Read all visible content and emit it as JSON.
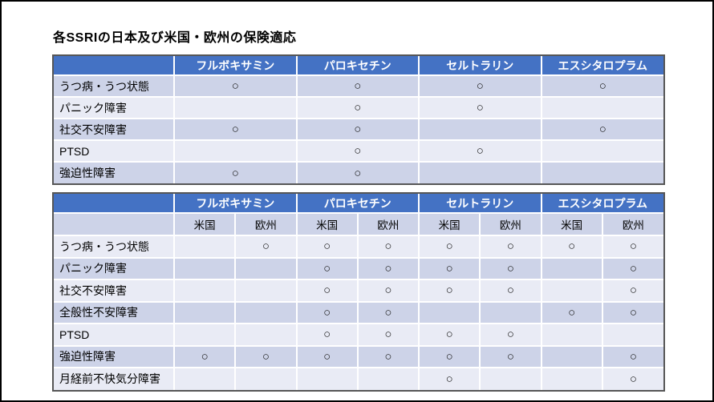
{
  "title": "各SSRIの日本及び米国・欧州の保険適応",
  "mark": "○",
  "colors": {
    "header_bg": "#4472C4",
    "header_text": "#FFFFFF",
    "band_dark": "#CDD3E8",
    "band_light": "#E9EBF5",
    "table_outline": "#565656",
    "title_text": "#000000"
  },
  "table_japan": {
    "drugs": [
      "フルボキサミン",
      "パロキセチン",
      "セルトラリン",
      "エスシタロプラム"
    ],
    "rows": [
      {
        "label": "うつ病・うつ状態",
        "cells": [
          "○",
          "○",
          "○",
          "○"
        ]
      },
      {
        "label": "パニック障害",
        "cells": [
          "",
          "○",
          "○",
          ""
        ]
      },
      {
        "label": "社交不安障害",
        "cells": [
          "○",
          "○",
          "",
          "○"
        ]
      },
      {
        "label": "PTSD",
        "cells": [
          "",
          "○",
          "○",
          ""
        ]
      },
      {
        "label": "強迫性障害",
        "cells": [
          "○",
          "○",
          "",
          ""
        ]
      }
    ]
  },
  "table_us_eu": {
    "drugs": [
      "フルボキサミン",
      "パロキセチン",
      "セルトラリン",
      "エスシタロプラム"
    ],
    "regions": [
      "米国",
      "欧州"
    ],
    "rows": [
      {
        "label": "うつ病・うつ状態",
        "cells": [
          "",
          "○",
          "○",
          "○",
          "○",
          "○",
          "○",
          "○"
        ]
      },
      {
        "label": "パニック障害",
        "cells": [
          "",
          "",
          "○",
          "○",
          "○",
          "○",
          "",
          "○"
        ]
      },
      {
        "label": "社交不安障害",
        "cells": [
          "",
          "",
          "○",
          "○",
          "○",
          "○",
          "",
          "○"
        ]
      },
      {
        "label": "全般性不安障害",
        "cells": [
          "",
          "",
          "○",
          "○",
          "",
          "",
          "○",
          "○"
        ]
      },
      {
        "label": "PTSD",
        "cells": [
          "",
          "",
          "○",
          "○",
          "○",
          "○",
          "",
          ""
        ]
      },
      {
        "label": "強迫性障害",
        "cells": [
          "○",
          "○",
          "○",
          "○",
          "○",
          "○",
          "",
          "○"
        ]
      },
      {
        "label": "月経前不快気分障害",
        "cells": [
          "",
          "",
          "",
          "",
          "○",
          "",
          "",
          "○"
        ]
      }
    ]
  }
}
